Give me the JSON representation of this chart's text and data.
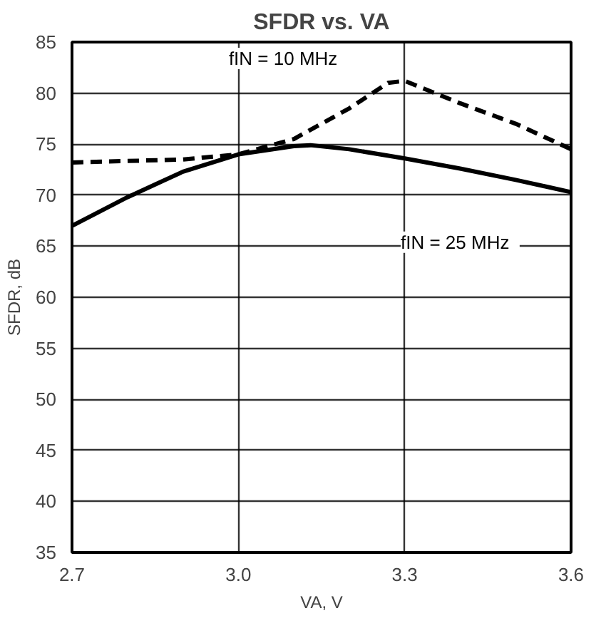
{
  "chart_data": {
    "type": "line",
    "title": "SFDR vs. VA",
    "xlabel": "VA, V",
    "ylabel": "SFDR, dB",
    "xlim": [
      2.7,
      3.6
    ],
    "xticks": [
      {
        "value": 2.7,
        "label": "2.7"
      },
      {
        "value": 3.0,
        "label": "3.0"
      },
      {
        "value": 3.3,
        "label": "3.3"
      },
      {
        "value": 3.6,
        "label": "3.6"
      }
    ],
    "ylim": [
      35,
      85
    ],
    "yticks": [
      35,
      40,
      45,
      50,
      55,
      60,
      65,
      70,
      75,
      80,
      85
    ],
    "grid": true,
    "legend": false,
    "series": [
      {
        "name": "fIN  =  10 MHz",
        "color": "#000000",
        "line_style": "dashed",
        "x": [
          2.7,
          2.9,
          3.0,
          3.1,
          3.2,
          3.27,
          3.3,
          3.4,
          3.5,
          3.6
        ],
        "values": [
          73.2,
          73.5,
          74.0,
          75.5,
          78.5,
          81.0,
          81.2,
          79.0,
          77.0,
          74.5
        ]
      },
      {
        "name": "fIN  =  25 MHz",
        "color": "#000000",
        "line_style": "solid",
        "x": [
          2.7,
          2.8,
          2.9,
          3.0,
          3.1,
          3.13,
          3.2,
          3.3,
          3.4,
          3.5,
          3.6
        ],
        "values": [
          67.0,
          69.8,
          72.3,
          74.0,
          74.8,
          74.9,
          74.5,
          73.6,
          72.6,
          71.5,
          70.3
        ]
      }
    ]
  }
}
